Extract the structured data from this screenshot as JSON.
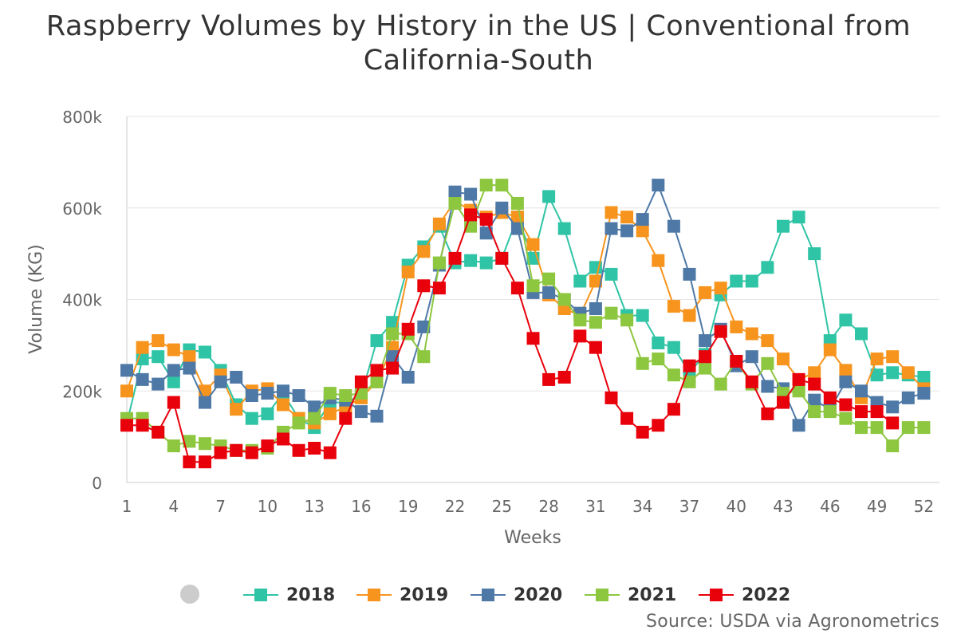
{
  "chart_data": {
    "type": "line",
    "title_line1": "Raspberry Volumes by History in the US | Conventional from",
    "title_line2": "California-South",
    "xlabel": "Weeks",
    "ylabel": "Volume (KG)",
    "ylim": [
      0,
      800000
    ],
    "yticks": [
      0,
      200000,
      400000,
      600000,
      800000
    ],
    "ytick_labels": [
      "0",
      "200k",
      "400k",
      "600k",
      "800k"
    ],
    "xlim": [
      1,
      53
    ],
    "xticks": [
      1,
      4,
      7,
      10,
      13,
      16,
      19,
      22,
      25,
      28,
      31,
      34,
      37,
      40,
      43,
      46,
      49,
      52
    ],
    "xtick_labels": [
      "1",
      "4",
      "7",
      "10",
      "13",
      "16",
      "19",
      "22",
      "25",
      "28",
      "31",
      "34",
      "37",
      "40",
      "43",
      "46",
      "49",
      "52"
    ],
    "grid": true,
    "legend_position": "bottom",
    "source": "Source: USDA via Agronometrics",
    "series": [
      {
        "name": "2018",
        "color": "#2ec4a5",
        "values": [
          130000,
          270000,
          275000,
          220000,
          290000,
          285000,
          245000,
          170000,
          140000,
          150000,
          195000,
          140000,
          120000,
          175000,
          175000,
          190000,
          310000,
          350000,
          475000,
          515000,
          560000,
          480000,
          485000,
          480000,
          490000,
          580000,
          490000,
          625000,
          555000,
          440000,
          470000,
          455000,
          365000,
          365000,
          305000,
          295000,
          240000,
          280000,
          410000,
          440000,
          440000,
          470000,
          560000,
          580000,
          500000,
          310000,
          355000,
          325000,
          235000,
          240000,
          235000,
          230000
        ]
      },
      {
        "name": "2019",
        "color": "#f7941d",
        "values": [
          200000,
          295000,
          310000,
          290000,
          275000,
          200000,
          235000,
          160000,
          200000,
          205000,
          170000,
          140000,
          130000,
          150000,
          165000,
          185000,
          220000,
          295000,
          460000,
          505000,
          565000,
          615000,
          595000,
          580000,
          590000,
          580000,
          520000,
          410000,
          380000,
          365000,
          440000,
          590000,
          580000,
          550000,
          485000,
          385000,
          365000,
          415000,
          425000,
          340000,
          325000,
          310000,
          270000,
          225000,
          240000,
          290000,
          245000,
          185000,
          270000,
          275000,
          240000,
          205000
        ]
      },
      {
        "name": "2020",
        "color": "#4e79a7",
        "values": [
          245000,
          225000,
          215000,
          245000,
          250000,
          175000,
          220000,
          230000,
          190000,
          195000,
          200000,
          190000,
          165000,
          185000,
          180000,
          155000,
          145000,
          275000,
          230000,
          340000,
          475000,
          635000,
          630000,
          545000,
          600000,
          555000,
          415000,
          415000,
          400000,
          370000,
          380000,
          555000,
          550000,
          575000,
          650000,
          560000,
          455000,
          310000,
          335000,
          255000,
          275000,
          210000,
          205000,
          125000,
          180000,
          160000,
          220000,
          200000,
          175000,
          165000,
          185000,
          195000
        ]
      },
      {
        "name": "2021",
        "color": "#8dc63f",
        "values": [
          140000,
          140000,
          110000,
          80000,
          90000,
          85000,
          80000,
          70000,
          70000,
          75000,
          110000,
          130000,
          140000,
          195000,
          190000,
          195000,
          220000,
          325000,
          325000,
          275000,
          480000,
          610000,
          560000,
          650000,
          650000,
          610000,
          430000,
          445000,
          400000,
          355000,
          350000,
          370000,
          355000,
          260000,
          270000,
          235000,
          220000,
          250000,
          215000,
          265000,
          215000,
          260000,
          195000,
          200000,
          155000,
          155000,
          140000,
          120000,
          120000,
          80000,
          120000,
          120000
        ]
      },
      {
        "name": "2022",
        "color": "#e8000b",
        "values": [
          125000,
          125000,
          110000,
          175000,
          45000,
          45000,
          65000,
          70000,
          65000,
          80000,
          95000,
          70000,
          75000,
          65000,
          140000,
          220000,
          245000,
          250000,
          335000,
          430000,
          425000,
          490000,
          585000,
          575000,
          490000,
          425000,
          315000,
          225000,
          230000,
          320000,
          295000,
          185000,
          140000,
          110000,
          125000,
          160000,
          255000,
          275000,
          330000,
          265000,
          220000,
          150000,
          175000,
          225000,
          215000,
          185000,
          170000,
          155000,
          155000,
          130000,
          null,
          null
        ]
      }
    ]
  }
}
